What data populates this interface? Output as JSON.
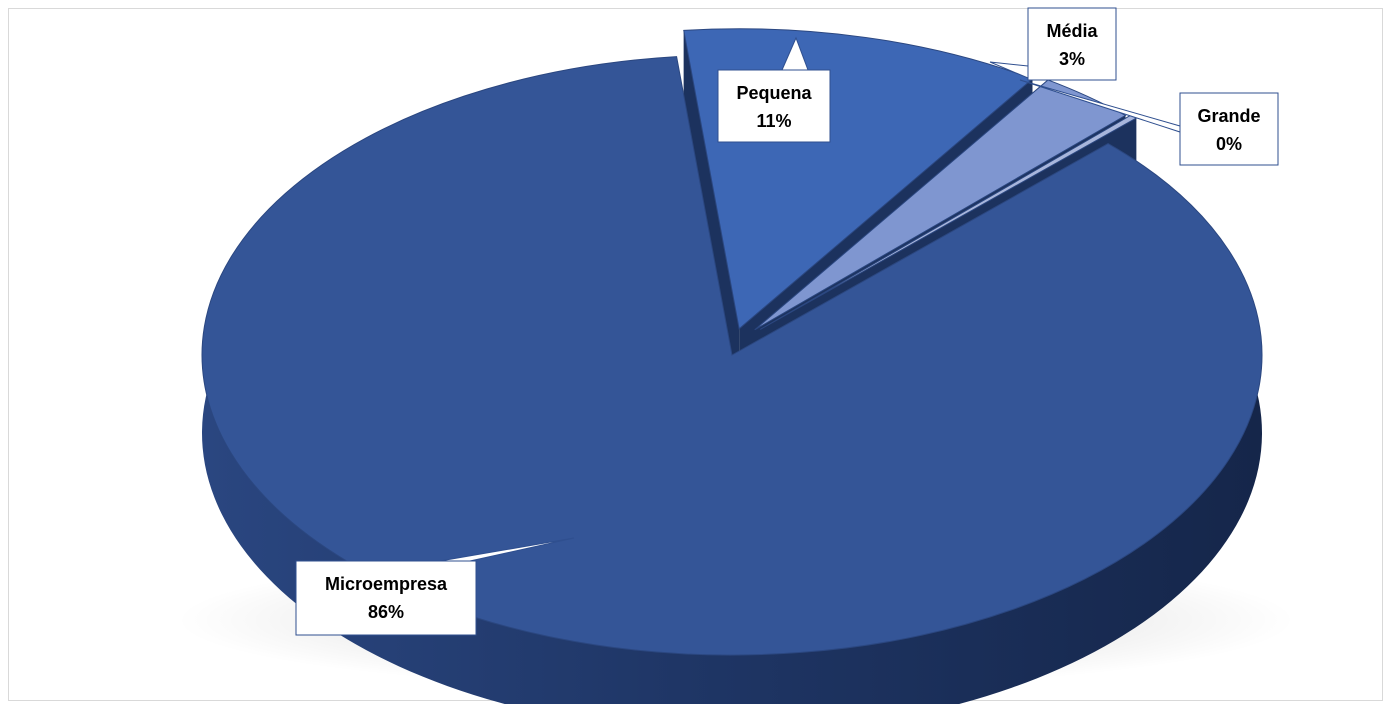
{
  "chart_data": {
    "type": "pie",
    "style": "3d-exploded",
    "categories": [
      "Microempresa",
      "Pequena",
      "Média",
      "Grande"
    ],
    "values": [
      86,
      11,
      3,
      0
    ],
    "labels": [
      {
        "name": "Microempresa",
        "percent": "86%"
      },
      {
        "name": "Pequena",
        "percent": "11%"
      },
      {
        "name": "Média",
        "percent": "3%"
      },
      {
        "name": "Grande",
        "percent": "0%"
      }
    ],
    "title": "",
    "legend": "none"
  },
  "colors": {
    "Microempresa": "#345597",
    "Pequena": "#3d67b5",
    "Média": "#7f96d0",
    "Grande": "#a8b6dc",
    "label_border": "#2f4f8f"
  }
}
